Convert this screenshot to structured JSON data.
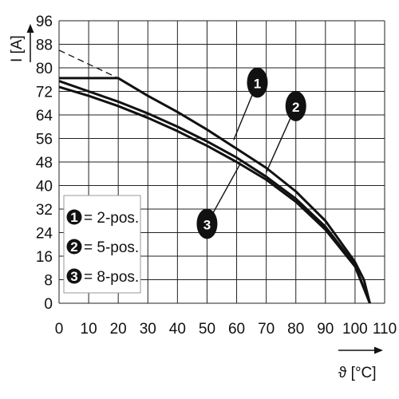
{
  "chart_data": {
    "type": "line",
    "title": "",
    "xlabel": "ϑ [°C]",
    "ylabel": "I [A]",
    "xlim": [
      0,
      110
    ],
    "ylim": [
      0,
      96
    ],
    "x_ticks": [
      "0",
      "10",
      "20",
      "30",
      "40",
      "50",
      "60",
      "70",
      "80",
      "90",
      "100",
      "110"
    ],
    "y_ticks": [
      "0",
      "8",
      "16",
      "24",
      "32",
      "40",
      "48",
      "56",
      "64",
      "72",
      "80",
      "88",
      "96"
    ],
    "grid": true,
    "legend_position": "bottom-left",
    "series": [
      {
        "name": "2-pos.",
        "marker": "1",
        "points": [
          [
            0,
            76.5
          ],
          [
            20,
            76.5
          ],
          [
            30,
            70.5
          ],
          [
            40,
            65
          ],
          [
            50,
            59
          ],
          [
            60,
            52.5
          ],
          [
            70,
            46
          ],
          [
            80,
            38
          ],
          [
            90,
            28
          ],
          [
            100,
            14
          ],
          [
            103,
            8
          ],
          [
            105,
            0
          ]
        ]
      },
      {
        "name": "5-pos.",
        "marker": "2",
        "points": [
          [
            0,
            75.5
          ],
          [
            10,
            72
          ],
          [
            20,
            68.5
          ],
          [
            30,
            64.5
          ],
          [
            40,
            60
          ],
          [
            50,
            55
          ],
          [
            60,
            49.5
          ],
          [
            70,
            43
          ],
          [
            80,
            35.5
          ],
          [
            90,
            26
          ],
          [
            100,
            13
          ],
          [
            105,
            0
          ]
        ]
      },
      {
        "name": "8-pos.",
        "marker": "3",
        "points": [
          [
            0,
            73.5
          ],
          [
            10,
            70.5
          ],
          [
            20,
            67
          ],
          [
            30,
            63
          ],
          [
            40,
            58.5
          ],
          [
            50,
            53.5
          ],
          [
            60,
            48
          ],
          [
            70,
            42
          ],
          [
            80,
            34.5
          ],
          [
            90,
            25
          ],
          [
            100,
            12.5
          ],
          [
            105,
            0
          ]
        ]
      }
    ],
    "extrapolation": {
      "points": [
        [
          0,
          86
        ],
        [
          20,
          76.5
        ]
      ],
      "style": "dashed"
    },
    "legend": [
      {
        "marker": "1",
        "label": "= 2-pos."
      },
      {
        "marker": "2",
        "label": "= 5-pos."
      },
      {
        "marker": "3",
        "label": "= 8-pos."
      }
    ],
    "callouts": [
      {
        "marker": "1",
        "at": [
          67,
          75
        ],
        "pointer": [
          59,
          55.5
        ]
      },
      {
        "marker": "2",
        "at": [
          80,
          67
        ],
        "pointer": [
          70,
          44.5
        ]
      },
      {
        "marker": "3",
        "at": [
          50,
          27
        ],
        "pointer": [
          61,
          47
        ]
      }
    ]
  }
}
